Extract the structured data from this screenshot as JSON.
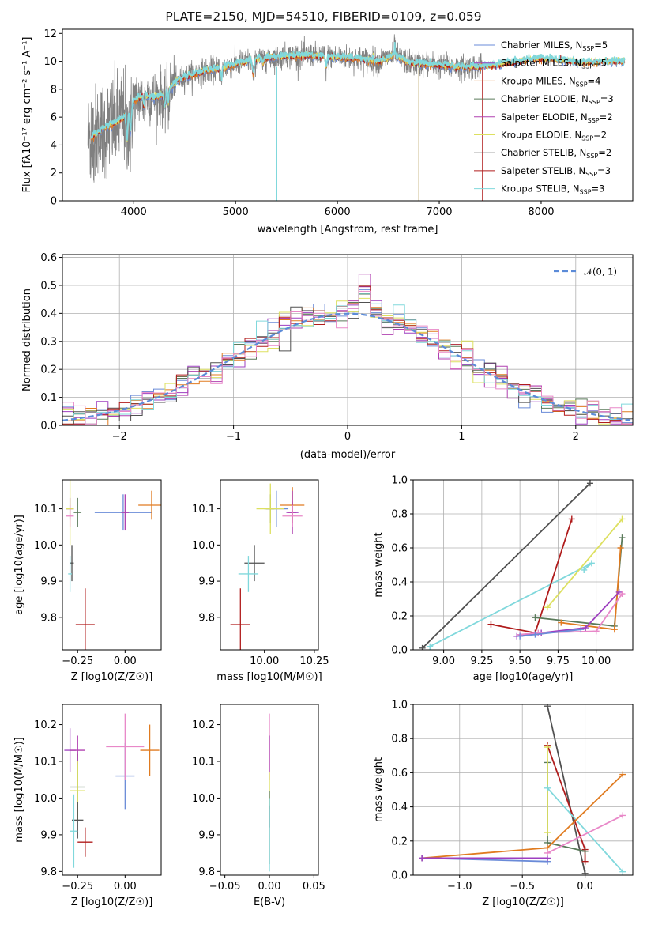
{
  "title": "PLATE=2150, MJD=54510, FIBERID=0109, z=0.059",
  "colors": {
    "Chabrier MILES": "#6a8bd8",
    "Salpeter MILES": "#9e3fc0",
    "Kroupa MILES": "#e07b20",
    "Chabrier ELODIE": "#5a7a5a",
    "Salpeter ELODIE": "#b040b0",
    "Kroupa ELODIE": "#dde060",
    "Chabrier STELIB": "#505050",
    "Salpeter STELIB": "#b01c1c",
    "Kroupa STELIB": "#80d8dc",
    "pink": "#e888c8",
    "gaussian": "#5b8bd8",
    "data": "#808080"
  },
  "chart_data": [
    {
      "id": "spectrum",
      "type": "line",
      "xlabel": "wavelength [Angstrom, rest frame]",
      "ylabel": "Flux [fλ10⁻¹⁷ erg cm⁻² s⁻¹ A⁻¹]",
      "xlim": [
        3300,
        8900
      ],
      "ylim": [
        0,
        12.3
      ],
      "xticks": [
        4000,
        5000,
        6000,
        7000,
        8000
      ],
      "yticks": [
        0,
        2,
        4,
        6,
        8,
        10,
        12
      ],
      "legend_position": "right",
      "legend": [
        {
          "label": "Chabrier MILES, N",
          "sub": "SSP",
          "suffix": "=5",
          "color_key": "Chabrier MILES"
        },
        {
          "label": "Salpeter MILES, N",
          "sub": "SSP",
          "suffix": "=5",
          "color_key": "Salpeter MILES"
        },
        {
          "label": "Kroupa MILES, N",
          "sub": "SSP",
          "suffix": "=4",
          "color_key": "Kroupa MILES"
        },
        {
          "label": "Chabrier ELODIE, N",
          "sub": "SSP",
          "suffix": "=3",
          "color_key": "Chabrier ELODIE"
        },
        {
          "label": "Salpeter ELODIE, N",
          "sub": "SSP",
          "suffix": "=2",
          "color_key": "Salpeter ELODIE"
        },
        {
          "label": "Kroupa ELODIE, N",
          "sub": "SSP",
          "suffix": "=2",
          "color_key": "Kroupa ELODIE"
        },
        {
          "label": "Chabrier STELIB, N",
          "sub": "SSP",
          "suffix": "=2",
          "color_key": "Chabrier STELIB"
        },
        {
          "label": "Salpeter STELIB, N",
          "sub": "SSP",
          "suffix": "=3",
          "color_key": "Salpeter STELIB"
        },
        {
          "label": "Kroupa STELIB, N",
          "sub": "SSP",
          "suffix": "=3",
          "color_key": "Kroupa STELIB"
        }
      ],
      "continuum": [
        [
          3580,
          4.5
        ],
        [
          3700,
          5.2
        ],
        [
          3800,
          5.5
        ],
        [
          3900,
          6.0
        ],
        [
          4000,
          7.2
        ],
        [
          4100,
          7.6
        ],
        [
          4200,
          7.4
        ],
        [
          4300,
          7.6
        ],
        [
          4400,
          8.4
        ],
        [
          4500,
          8.9
        ],
        [
          4700,
          9.3
        ],
        [
          4860,
          9.5
        ],
        [
          5000,
          9.8
        ],
        [
          5200,
          10.2
        ],
        [
          5400,
          10.3
        ],
        [
          5600,
          10.4
        ],
        [
          5800,
          10.4
        ],
        [
          6000,
          10.3
        ],
        [
          6200,
          10.2
        ],
        [
          6400,
          10.0
        ],
        [
          6563,
          10.4
        ],
        [
          6700,
          9.9
        ],
        [
          7000,
          9.7
        ],
        [
          7200,
          9.6
        ],
        [
          7400,
          9.6
        ],
        [
          7600,
          9.8
        ],
        [
          8000,
          10.2
        ],
        [
          8400,
          9.9
        ],
        [
          8800,
          10.0
        ]
      ],
      "model_range": [
        3580,
        8820
      ],
      "data_range": [
        3550,
        7430
      ]
    },
    {
      "id": "residual_histogram",
      "type": "bar",
      "xlabel": "(data-model)/error",
      "ylabel": "Normed distribution",
      "xlim": [
        -2.5,
        2.5
      ],
      "ylim": [
        0,
        0.61
      ],
      "xticks": [
        -2,
        -1,
        0,
        1,
        2
      ],
      "yticks": [
        0.0,
        0.1,
        0.2,
        0.3,
        0.4,
        0.5,
        0.6
      ],
      "legend": "𝒩(0, 1)",
      "legend_position": "top-right",
      "bin_width": 0.1
    },
    {
      "id": "age_vs_Z",
      "type": "scatter",
      "xlabel": "Z [log10(Z/Z☉)]",
      "ylabel": "age [log10(age/yr)]",
      "xlim": [
        -0.33,
        0.19
      ],
      "ylim": [
        9.71,
        10.18
      ],
      "xticks": [
        -0.25,
        0.0
      ],
      "yticks": [
        9.8,
        9.9,
        10.0,
        10.1
      ],
      "points": [
        {
          "key": "Chabrier MILES",
          "x": -0.01,
          "y": 10.09,
          "ex": 0.15,
          "ey": 0.05
        },
        {
          "key": "Salpeter MILES",
          "x": -0.29,
          "y": 10.1,
          "ex": 0.02,
          "ey": 0.03
        },
        {
          "key": "Kroupa MILES",
          "x": 0.14,
          "y": 10.11,
          "ex": 0.07,
          "ey": 0.04
        },
        {
          "key": "Chabrier ELODIE",
          "x": -0.25,
          "y": 10.09,
          "ex": 0.02,
          "ey": 0.04
        },
        {
          "key": "Salpeter ELODIE",
          "x": 0.0,
          "y": 10.09,
          "ex": 0.02,
          "ey": 0.05
        },
        {
          "key": "Kroupa ELODIE",
          "x": -0.29,
          "y": 10.1,
          "ex": 0.02,
          "ey": 0.1
        },
        {
          "key": "Chabrier STELIB",
          "x": -0.28,
          "y": 9.95,
          "ex": 0.01,
          "ey": 0.05
        },
        {
          "key": "Salpeter STELIB",
          "x": -0.21,
          "y": 9.78,
          "ex": 0.05,
          "ey": 0.1
        },
        {
          "key": "Kroupa STELIB",
          "x": -0.29,
          "y": 9.92,
          "ex": 0.01,
          "ey": 0.05
        },
        {
          "key": "pink",
          "x": -0.29,
          "y": 10.08,
          "ex": 0.02,
          "ey": 0.03
        }
      ]
    },
    {
      "id": "age_vs_mass",
      "type": "scatter",
      "xlabel": "mass [log10(M/M☉)]",
      "xlim": [
        9.78,
        10.27
      ],
      "ylim": [
        9.71,
        10.18
      ],
      "xticks": [
        10.0,
        10.25
      ],
      "yticks": [
        9.8,
        9.9,
        10.0,
        10.1
      ],
      "points": [
        {
          "key": "Chabrier MILES",
          "x": 10.06,
          "y": 10.1,
          "ex": 0.06,
          "ey": 0.05
        },
        {
          "key": "Salpeter MILES",
          "x": 10.14,
          "y": 10.09,
          "ex": 0.03,
          "ey": 0.03
        },
        {
          "key": "Kroupa MILES",
          "x": 10.14,
          "y": 10.11,
          "ex": 0.06,
          "ey": 0.05
        },
        {
          "key": "Chabrier ELODIE",
          "x": 10.03,
          "y": 10.1,
          "ex": 0.02,
          "ey": 0.04
        },
        {
          "key": "Salpeter ELODIE",
          "x": 10.14,
          "y": 10.09,
          "ex": 0.02,
          "ey": 0.06
        },
        {
          "key": "Kroupa ELODIE",
          "x": 10.03,
          "y": 10.1,
          "ex": 0.07,
          "ey": 0.07
        },
        {
          "key": "Chabrier STELIB",
          "x": 9.95,
          "y": 9.95,
          "ex": 0.05,
          "ey": 0.05
        },
        {
          "key": "Salpeter STELIB",
          "x": 9.88,
          "y": 9.78,
          "ex": 0.05,
          "ey": 0.1
        },
        {
          "key": "Kroupa STELIB",
          "x": 9.92,
          "y": 9.92,
          "ex": 0.05,
          "ey": 0.05
        },
        {
          "key": "pink",
          "x": 10.14,
          "y": 10.08,
          "ex": 0.05,
          "ey": 0.03
        }
      ]
    },
    {
      "id": "weight_vs_age",
      "type": "line",
      "xlabel": "age [log10(age/yr)]",
      "ylabel": "mass weight",
      "xlim": [
        8.8,
        10.24
      ],
      "ylim": [
        0.0,
        1.0
      ],
      "xticks": [
        9.0,
        9.25,
        9.5,
        9.75,
        10.0
      ],
      "yticks": [
        0.0,
        0.2,
        0.4,
        0.6,
        0.8,
        1.0
      ],
      "series": [
        {
          "key": "Chabrier STELIB",
          "points": [
            [
              8.86,
              0.01
            ],
            [
              9.96,
              0.98
            ]
          ]
        },
        {
          "key": "Kroupa STELIB",
          "points": [
            [
              8.91,
              0.02
            ],
            [
              9.97,
              0.51
            ],
            [
              9.92,
              0.47
            ]
          ]
        },
        {
          "key": "Salpeter STELIB",
          "points": [
            [
              9.31,
              0.15
            ],
            [
              9.6,
              0.1
            ],
            [
              9.84,
              0.77
            ]
          ]
        },
        {
          "key": "Kroupa ELODIE",
          "points": [
            [
              9.68,
              0.25
            ],
            [
              10.17,
              0.77
            ]
          ]
        },
        {
          "key": "Chabrier ELODIE",
          "points": [
            [
              9.6,
              0.19
            ],
            [
              10.12,
              0.14
            ],
            [
              10.17,
              0.66
            ]
          ]
        },
        {
          "key": "Kroupa MILES",
          "points": [
            [
              9.77,
              0.16
            ],
            [
              10.12,
              0.12
            ],
            [
              10.16,
              0.6
            ]
          ]
        },
        {
          "key": "Salpeter MILES",
          "points": [
            [
              9.48,
              0.08
            ],
            [
              9.64,
              0.1
            ],
            [
              9.93,
              0.13
            ],
            [
              10.15,
              0.34
            ]
          ]
        },
        {
          "key": "pink",
          "points": [
            [
              9.5,
              0.09
            ],
            [
              9.62,
              0.1
            ],
            [
              10.0,
              0.11
            ],
            [
              10.17,
              0.33
            ]
          ]
        },
        {
          "key": "Chabrier MILES",
          "points": [
            [
              9.5,
              0.08
            ],
            [
              9.6,
              0.09
            ],
            [
              9.9,
              0.12
            ]
          ]
        }
      ]
    },
    {
      "id": "mass_vs_Z",
      "type": "scatter",
      "xlabel": "Z [log10(Z/Z☉)]",
      "ylabel": "mass [log10(M/M☉)]",
      "xlim": [
        -0.33,
        0.19
      ],
      "ylim": [
        9.79,
        10.255
      ],
      "xticks": [
        -0.25,
        0.0
      ],
      "yticks": [
        9.8,
        9.9,
        10.0,
        10.1,
        10.2
      ],
      "points": [
        {
          "key": "Chabrier MILES",
          "x": 0.0,
          "y": 10.06,
          "ex": 0.05,
          "ey": 0.09
        },
        {
          "key": "Salpeter MILES",
          "x": -0.29,
          "y": 10.13,
          "ex": 0.03,
          "ey": 0.06
        },
        {
          "key": "Kroupa MILES",
          "x": 0.13,
          "y": 10.13,
          "ex": 0.05,
          "ey": 0.07
        },
        {
          "key": "Chabrier ELODIE",
          "x": -0.25,
          "y": 10.03,
          "ex": 0.04,
          "ey": 0.09
        },
        {
          "key": "Salpeter ELODIE",
          "x": -0.25,
          "y": 10.13,
          "ex": 0.04,
          "ey": 0.04
        },
        {
          "key": "Kroupa ELODIE",
          "x": -0.25,
          "y": 10.02,
          "ex": 0.04,
          "ey": 0.08
        },
        {
          "key": "Chabrier STELIB",
          "x": -0.25,
          "y": 9.94,
          "ex": 0.03,
          "ey": 0.05
        },
        {
          "key": "Salpeter STELIB",
          "x": -0.21,
          "y": 9.88,
          "ex": 0.04,
          "ey": 0.04
        },
        {
          "key": "Kroupa STELIB",
          "x": -0.27,
          "y": 9.91,
          "ex": 0.02,
          "ey": 0.1
        },
        {
          "key": "pink",
          "x": 0.0,
          "y": 10.14,
          "ex": 0.1,
          "ey": 0.09
        }
      ]
    },
    {
      "id": "mass_vs_EBV",
      "type": "scatter",
      "xlabel": "E(B-V)",
      "xlim": [
        -0.055,
        0.055
      ],
      "ylim": [
        9.79,
        10.255
      ],
      "xticks": [
        -0.05,
        0.0,
        0.05
      ],
      "yticks": [
        9.8,
        9.9,
        10.0,
        10.1,
        10.2
      ],
      "points": [
        {
          "key": "pink",
          "x": 0.0,
          "y": 10.14,
          "ex": 0.0,
          "ey": 0.09
        },
        {
          "key": "Salpeter ELODIE",
          "x": 0.0,
          "y": 10.12,
          "ex": 0.0,
          "ey": 0.05
        },
        {
          "key": "Kroupa ELODIE",
          "x": 0.0,
          "y": 10.02,
          "ex": 0.0,
          "ey": 0.05
        },
        {
          "key": "Chabrier STELIB",
          "x": 0.0,
          "y": 9.95,
          "ex": 0.0,
          "ey": 0.03
        },
        {
          "key": "Chabrier ELODIE",
          "x": 0.0,
          "y": 9.92,
          "ex": 0.0,
          "ey": 0.1
        },
        {
          "key": "Kroupa STELIB",
          "x": 0.0,
          "y": 9.9,
          "ex": 0.0,
          "ey": 0.1
        }
      ]
    },
    {
      "id": "weight_vs_Z",
      "type": "line",
      "xlabel": "Z [log10(Z/Z☉)]",
      "ylabel": "mass weight",
      "xlim": [
        -1.37,
        0.38
      ],
      "ylim": [
        0.0,
        1.0
      ],
      "xticks": [
        -1.0,
        -0.5,
        0.0
      ],
      "yticks": [
        0.0,
        0.2,
        0.4,
        0.6,
        0.8,
        1.0
      ],
      "series": [
        {
          "key": "Chabrier STELIB",
          "points": [
            [
              -0.3,
              0.99
            ],
            [
              0.0,
              0.01
            ]
          ]
        },
        {
          "key": "Salpeter STELIB",
          "points": [
            [
              -0.3,
              0.76
            ],
            [
              0.0,
              0.15
            ],
            [
              0.0,
              0.08
            ]
          ]
        },
        {
          "key": "Chabrier ELODIE",
          "points": [
            [
              -0.3,
              0.66
            ],
            [
              -0.3,
              0.19
            ],
            [
              0.0,
              0.14
            ]
          ]
        },
        {
          "key": "Kroupa ELODIE",
          "points": [
            [
              -0.3,
              0.75
            ],
            [
              -0.3,
              0.25
            ]
          ]
        },
        {
          "key": "Kroupa STELIB",
          "points": [
            [
              -0.3,
              0.51
            ],
            [
              0.3,
              0.02
            ]
          ]
        },
        {
          "key": "Kroupa MILES",
          "points": [
            [
              -1.3,
              0.1
            ],
            [
              -0.3,
              0.16
            ],
            [
              0.3,
              0.59
            ]
          ]
        },
        {
          "key": "Chabrier MILES",
          "points": [
            [
              -1.3,
              0.1
            ],
            [
              -0.3,
              0.08
            ]
          ]
        },
        {
          "key": "Salpeter MILES",
          "points": [
            [
              -1.3,
              0.1
            ],
            [
              -0.3,
              0.1
            ]
          ]
        },
        {
          "key": "pink",
          "points": [
            [
              -0.3,
              0.13
            ],
            [
              0.3,
              0.35
            ]
          ]
        }
      ]
    }
  ]
}
